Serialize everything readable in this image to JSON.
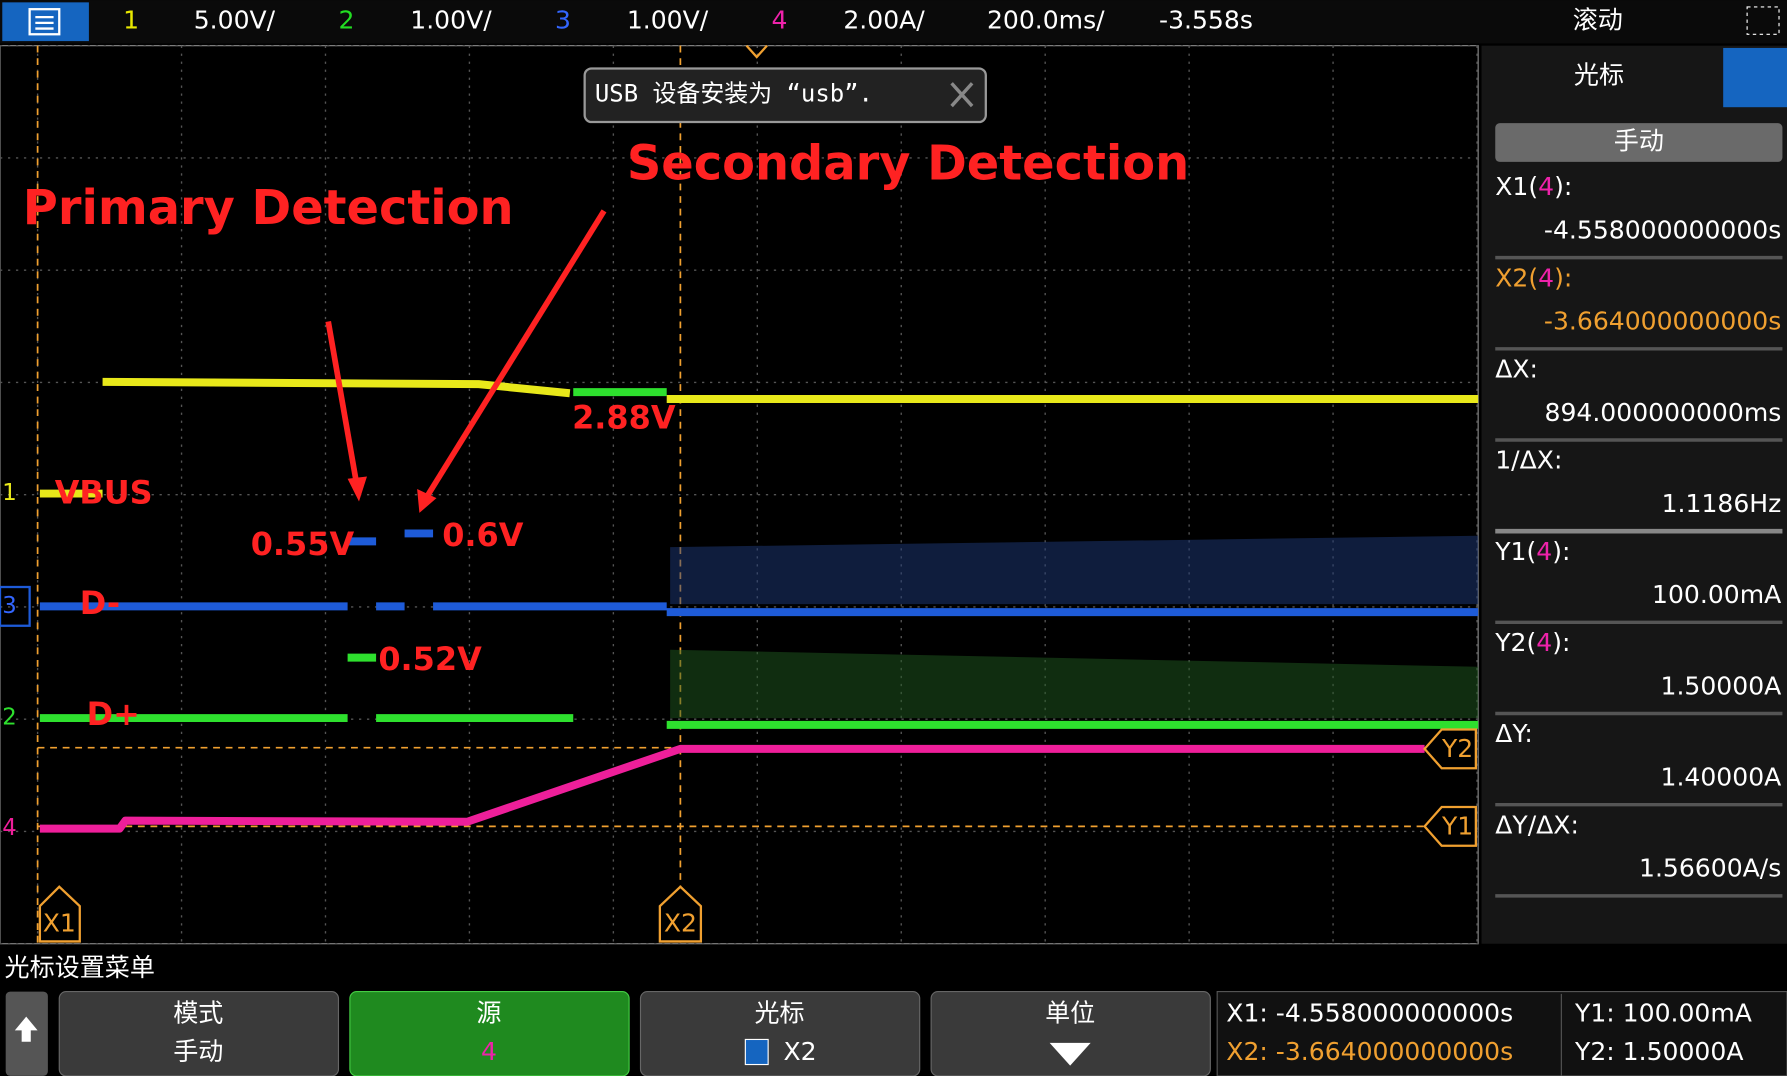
{
  "top_bar": {
    "channels": [
      {
        "number": "1",
        "scale": "5.00V/"
      },
      {
        "number": "2",
        "scale": "1.00V/"
      },
      {
        "number": "3",
        "scale": "1.00V/"
      },
      {
        "number": "4",
        "scale": "2.00A/"
      }
    ],
    "timebase": "200.0ms/",
    "delay": "-3.558s",
    "mode": "滚动"
  },
  "notification": "USB 设备安装为 “usb”.",
  "annotations": {
    "primary": "Primary Detection",
    "secondary": "Secondary Detection",
    "v055": "0.55V",
    "v06": "0.6V",
    "v052": "0.52V",
    "v288": "2.88V",
    "vbus": "VBUS",
    "dminus": "D-",
    "dplus": "D+"
  },
  "markers": {
    "x1": "X1",
    "x2": "X2",
    "y1": "Y1",
    "y2": "Y2"
  },
  "channel_markers": {
    "ch1": "1",
    "ch3": "3",
    "ch2": "2",
    "ch4": "4"
  },
  "side_panel": {
    "title": "光标",
    "mode": "手动",
    "readouts": [
      {
        "label": [
          "X1(",
          "4",
          "):"
        ],
        "value": "-4.558000000000s"
      },
      {
        "label": [
          "X2(",
          "4",
          "):"
        ],
        "value": "-3.664000000000s"
      },
      {
        "label": [
          "ΔX:"
        ],
        "value": "894.000000000ms"
      },
      {
        "label": [
          "1/ΔX:"
        ],
        "value": "1.1186Hz"
      },
      {
        "label": [
          "Y1(",
          "4",
          "):"
        ],
        "value": "100.00mA"
      },
      {
        "label": [
          "Y2(",
          "4",
          "):"
        ],
        "value": "1.50000A"
      },
      {
        "label": [
          "ΔY:"
        ],
        "value": "1.40000A"
      },
      {
        "label": [
          "ΔY/ΔX:"
        ],
        "value": "1.56600A/s"
      }
    ]
  },
  "menu": {
    "title": "光标设置菜单",
    "buttons": [
      {
        "label": "模式",
        "value": "手动"
      },
      {
        "label": "源",
        "value": "4"
      },
      {
        "label": "光标",
        "value": "X2"
      },
      {
        "label": "单位"
      }
    ]
  },
  "status": {
    "x1": "X1: -4.558000000000s",
    "x2": "X2: -3.664000000000s",
    "y1": "Y1: 100.00mA",
    "y2": "Y2: 1.50000A"
  }
}
